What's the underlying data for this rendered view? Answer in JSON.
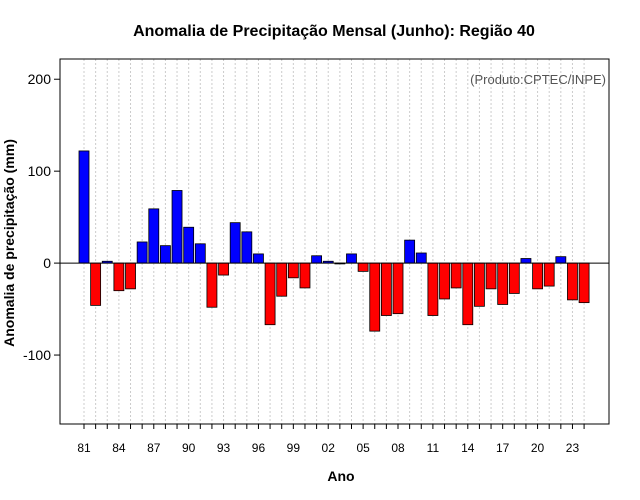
{
  "chart_data": {
    "type": "bar",
    "title": "Anomalia de Precipitação Mensal (Junho): Região 40",
    "xlabel": "Ano",
    "ylabel": "Anomalia de precipitação (mm)",
    "annotation": "(Produto:CPTEC/INPE)",
    "ylim": [
      -175,
      222
    ],
    "yticks": [
      -100,
      0,
      100,
      200
    ],
    "ytick_labels": [
      "-100",
      "0",
      "100",
      "200"
    ],
    "grid": true,
    "colors": {
      "positive": "#0000ff",
      "negative": "#ff0000",
      "axis": "#000000",
      "grid": "#cccccc"
    },
    "categories": [
      "1981",
      "1982",
      "1983",
      "1984",
      "1985",
      "1986",
      "1987",
      "1988",
      "1989",
      "1990",
      "1991",
      "1992",
      "1993",
      "1994",
      "1995",
      "1996",
      "1997",
      "1998",
      "1999",
      "2000",
      "2001",
      "2002",
      "2003",
      "2004",
      "2005",
      "2006",
      "2007",
      "2008",
      "2009",
      "2010",
      "2011",
      "2012",
      "2013",
      "2014",
      "2015",
      "2016",
      "2017",
      "2018",
      "2019",
      "2020",
      "2021",
      "2022",
      "2023",
      "2024"
    ],
    "xtick_labels": [
      {
        "index": 0,
        "label": "81"
      },
      {
        "index": 3,
        "label": "84"
      },
      {
        "index": 6,
        "label": "87"
      },
      {
        "index": 9,
        "label": "90"
      },
      {
        "index": 12,
        "label": "93"
      },
      {
        "index": 15,
        "label": "96"
      },
      {
        "index": 18,
        "label": "99"
      },
      {
        "index": 21,
        "label": "02"
      },
      {
        "index": 24,
        "label": "05"
      },
      {
        "index": 27,
        "label": "08"
      },
      {
        "index": 30,
        "label": "11"
      },
      {
        "index": 33,
        "label": "14"
      },
      {
        "index": 36,
        "label": "17"
      },
      {
        "index": 39,
        "label": "20"
      },
      {
        "index": 42,
        "label": "23"
      }
    ],
    "values": [
      122,
      -46,
      2,
      -30,
      -28,
      23,
      59,
      19,
      79,
      39,
      21,
      -48,
      -13,
      44,
      34,
      10,
      -67,
      -36,
      -16,
      -27,
      8,
      2,
      0,
      10,
      -9,
      -74,
      -57,
      -55,
      25,
      11,
      -57,
      -39,
      -27,
      -67,
      -47,
      -28,
      -45,
      -33,
      5,
      -28,
      -25,
      7,
      -40,
      -43
    ]
  }
}
